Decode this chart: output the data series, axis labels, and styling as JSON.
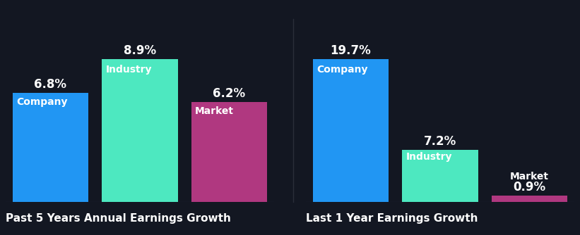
{
  "background_color": "#131722",
  "chart1": {
    "title": "Past 5 Years Annual Earnings Growth",
    "categories": [
      "Company",
      "Industry",
      "Market"
    ],
    "values": [
      6.8,
      8.9,
      6.2
    ],
    "colors": [
      "#2196f3",
      "#4de8c0",
      "#b03880"
    ],
    "labels": [
      "6.8%",
      "8.9%",
      "6.2%"
    ]
  },
  "chart2": {
    "title": "Last 1 Year Earnings Growth",
    "categories": [
      "Company",
      "Industry",
      "Market"
    ],
    "values": [
      19.7,
      7.2,
      0.9
    ],
    "colors": [
      "#2196f3",
      "#4de8c0",
      "#b03880"
    ],
    "labels": [
      "19.7%",
      "7.2%",
      "0.9%"
    ]
  },
  "text_color": "#ffffff",
  "bar_label_fontsize": 12,
  "cat_label_fontsize": 10,
  "title_fontsize": 11,
  "bar_width": 0.85
}
